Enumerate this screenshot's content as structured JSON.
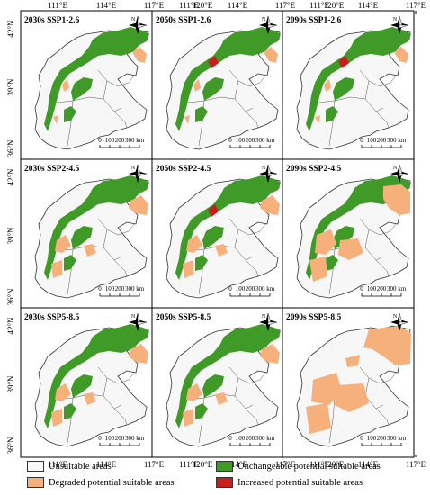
{
  "axis": {
    "top_lon": [
      "111°E",
      "114°E",
      "117°E",
      "120°E"
    ],
    "bottom_lon": [
      "111°E",
      "114°E",
      "117°E",
      "120°E"
    ],
    "left_lat": [
      "42°N",
      "39°N",
      "36°N"
    ]
  },
  "panels": [
    {
      "title": "2030s SSP1-2.6",
      "state": {
        "degraded": "low",
        "increased": false
      }
    },
    {
      "title": "2050s SSP1-2.6",
      "state": {
        "degraded": "low",
        "increased": true
      }
    },
    {
      "title": "2090s SSP1-2.6",
      "state": {
        "degraded": "low",
        "increased": true
      }
    },
    {
      "title": "2030s SSP2-4.5",
      "state": {
        "degraded": "medium",
        "increased": false
      }
    },
    {
      "title": "2050s SSP2-4.5",
      "state": {
        "degraded": "medium",
        "increased": true
      }
    },
    {
      "title": "2090s SSP2-4.5",
      "state": {
        "degraded": "high",
        "increased": false
      }
    },
    {
      "title": "2030s SSP5-8.5",
      "state": {
        "degraded": "medium",
        "increased": false
      }
    },
    {
      "title": "2050s SSP5-8.5",
      "state": {
        "degraded": "medium",
        "increased": false
      }
    },
    {
      "title": "2090s SSP5-8.5",
      "state": {
        "degraded": "very_high",
        "increased": false
      }
    }
  ],
  "scalebar": {
    "labels": [
      "0",
      "100",
      "200",
      "300 km"
    ]
  },
  "north_arrow": {
    "label": "N",
    "icon": "compass-rose-icon"
  },
  "legend": [
    {
      "label": "Unsuitable areas",
      "color": "#f7f7f7"
    },
    {
      "label": "Unchangeable potential suitable areas",
      "color": "#3f9a28"
    },
    {
      "label": "Degraded potential suitable areas",
      "color": "#f5b07c"
    },
    {
      "label": "Increased potential suitable areas",
      "color": "#c81e1e"
    }
  ]
}
